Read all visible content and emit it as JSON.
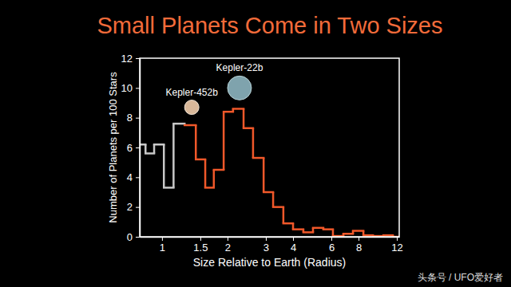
{
  "chart_data": {
    "type": "histogram",
    "title": "Small Planets Come in Two Sizes",
    "x_label": "Size Relative to Earth (Radius)",
    "y_label": "Number of Planets per 100 Stars",
    "bins": [
      0.79,
      0.84,
      0.92,
      1.02,
      1.13,
      1.27,
      1.43,
      1.58,
      1.73,
      1.92,
      2.12,
      2.37,
      2.62,
      2.93,
      3.24,
      3.61,
      4.0,
      4.46,
      4.94,
      5.51,
      6.1,
      6.81,
      7.54,
      8.42,
      9.32,
      10.4,
      11.5,
      12.3
    ],
    "series": [
      {
        "color": "#c8c8c8",
        "values": [
          6.2,
          5.6,
          6.2,
          3.3,
          7.6,
          null,
          null,
          null,
          null,
          null,
          null,
          null,
          null,
          null,
          null,
          null,
          null,
          null,
          null,
          null,
          null,
          null,
          null,
          null,
          null,
          null,
          null
        ]
      },
      {
        "color": "#f0582a",
        "values": [
          null,
          null,
          null,
          null,
          null,
          7.5,
          5.2,
          3.3,
          4.5,
          8.4,
          8.6,
          7.3,
          5.3,
          3.0,
          2.0,
          0.9,
          0.5,
          0.3,
          0.6,
          0.5,
          0.05,
          0.2,
          0.4,
          0.1,
          0.05,
          0.1,
          0.0
        ]
      }
    ],
    "xlim": [
      0.79,
      12.3
    ],
    "ylim": [
      0,
      12
    ],
    "xticks": [
      1,
      1.5,
      2,
      3,
      4,
      6,
      8,
      12
    ],
    "yticks": [
      0,
      2,
      4,
      6,
      8,
      10,
      12
    ],
    "log": "x",
    "grid": false,
    "annotations": [
      {
        "text": "Kepler-452b",
        "x": 1.37,
        "y": 8.7
      },
      {
        "text": "Kepler-22b",
        "x": 2.27,
        "y": 10.0
      }
    ],
    "watermark": "头条号 / UFO爱好者"
  }
}
